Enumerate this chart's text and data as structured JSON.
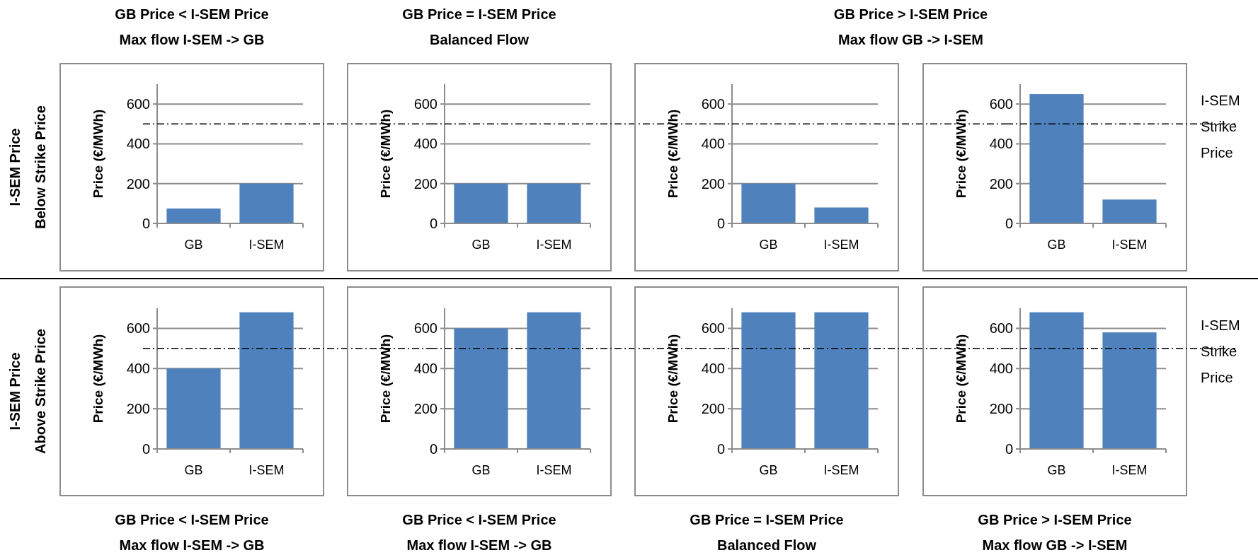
{
  "chart_data": [
    {
      "type": "bar",
      "title": "GB Price < I-SEM Price\nMax flow I-SEM -> GB",
      "ylabel": "Price (€/MWh)",
      "categories": [
        "GB",
        "I-SEM"
      ],
      "values": [
        75,
        200
      ],
      "color": "#4f81bd",
      "ylim": [
        0,
        700
      ],
      "yticks": [
        0,
        200,
        400,
        600
      ],
      "grid": "y",
      "ref_lines": [
        {
          "axis": "y",
          "value": 500,
          "line_style": "dashdot"
        }
      ],
      "annotations": [
        "I-SEM Price\nBelow Strike Price"
      ]
    },
    {
      "type": "bar",
      "title": "GB Price = I-SEM Price\nBalanced Flow",
      "ylabel": "Price (€/MWh)",
      "categories": [
        "GB",
        "I-SEM"
      ],
      "values": [
        200,
        200
      ],
      "color": "#4f81bd",
      "ylim": [
        0,
        700
      ],
      "yticks": [
        0,
        200,
        400,
        600
      ],
      "grid": "y",
      "ref_lines": [
        {
          "axis": "y",
          "value": 500,
          "line_style": "dashdot"
        }
      ]
    },
    {
      "type": "bar",
      "title": "GB Price > I-SEM Price\nMax flow GB -> I-SEM",
      "ylabel": "Price (€/MWh)",
      "categories": [
        "GB",
        "I-SEM"
      ],
      "values": [
        200,
        80
      ],
      "color": "#4f81bd",
      "ylim": [
        0,
        700
      ],
      "yticks": [
        0,
        200,
        400,
        600
      ],
      "grid": "y",
      "ref_lines": [
        {
          "axis": "y",
          "value": 500,
          "line_style": "dashdot"
        }
      ]
    },
    {
      "type": "bar",
      "ylabel": "Price (€/MWh)",
      "categories": [
        "GB",
        "I-SEM"
      ],
      "values": [
        650,
        120
      ],
      "color": "#4f81bd",
      "ylim": [
        0,
        700
      ],
      "yticks": [
        0,
        200,
        400,
        600
      ],
      "grid": "y",
      "ref_lines": [
        {
          "axis": "y",
          "value": 500,
          "label": "I-SEM\nStrike\nPrice",
          "line_style": "dashdot"
        }
      ]
    },
    {
      "type": "bar",
      "title": "GB Price < I-SEM Price\nMax flow I-SEM -> GB",
      "ylabel": "Price (€/MWh)",
      "categories": [
        "GB",
        "I-SEM"
      ],
      "values": [
        400,
        680
      ],
      "color": "#4f81bd",
      "ylim": [
        0,
        700
      ],
      "yticks": [
        0,
        200,
        400,
        600
      ],
      "grid": "y",
      "ref_lines": [
        {
          "axis": "y",
          "value": 500,
          "line_style": "dashdot"
        }
      ],
      "annotations": [
        "I-SEM Price\nAbove Strike Price"
      ]
    },
    {
      "type": "bar",
      "title": "GB Price < I-SEM Price\nMax flow I-SEM -> GB",
      "ylabel": "Price (€/MWh)",
      "categories": [
        "GB",
        "I-SEM"
      ],
      "values": [
        600,
        680
      ],
      "color": "#4f81bd",
      "ylim": [
        0,
        700
      ],
      "yticks": [
        0,
        200,
        400,
        600
      ],
      "grid": "y",
      "ref_lines": [
        {
          "axis": "y",
          "value": 500,
          "line_style": "dashdot"
        }
      ]
    },
    {
      "type": "bar",
      "title": "GB Price = I-SEM Price\nBalanced Flow",
      "ylabel": "Price (€/MWh)",
      "categories": [
        "GB",
        "I-SEM"
      ],
      "values": [
        680,
        680
      ],
      "color": "#4f81bd",
      "ylim": [
        0,
        700
      ],
      "yticks": [
        0,
        200,
        400,
        600
      ],
      "grid": "y",
      "ref_lines": [
        {
          "axis": "y",
          "value": 500,
          "line_style": "dashdot"
        }
      ]
    },
    {
      "type": "bar",
      "title": "GB Price > I-SEM Price\nMax flow GB -> I-SEM",
      "ylabel": "Price (€/MWh)",
      "categories": [
        "GB",
        "I-SEM"
      ],
      "values": [
        680,
        580
      ],
      "color": "#4f81bd",
      "ylim": [
        0,
        700
      ],
      "yticks": [
        0,
        200,
        400,
        600
      ],
      "grid": "y",
      "ref_lines": [
        {
          "axis": "y",
          "value": 500,
          "label": "I-SEM\nStrike\nPrice",
          "line_style": "dashdot"
        }
      ]
    }
  ]
}
